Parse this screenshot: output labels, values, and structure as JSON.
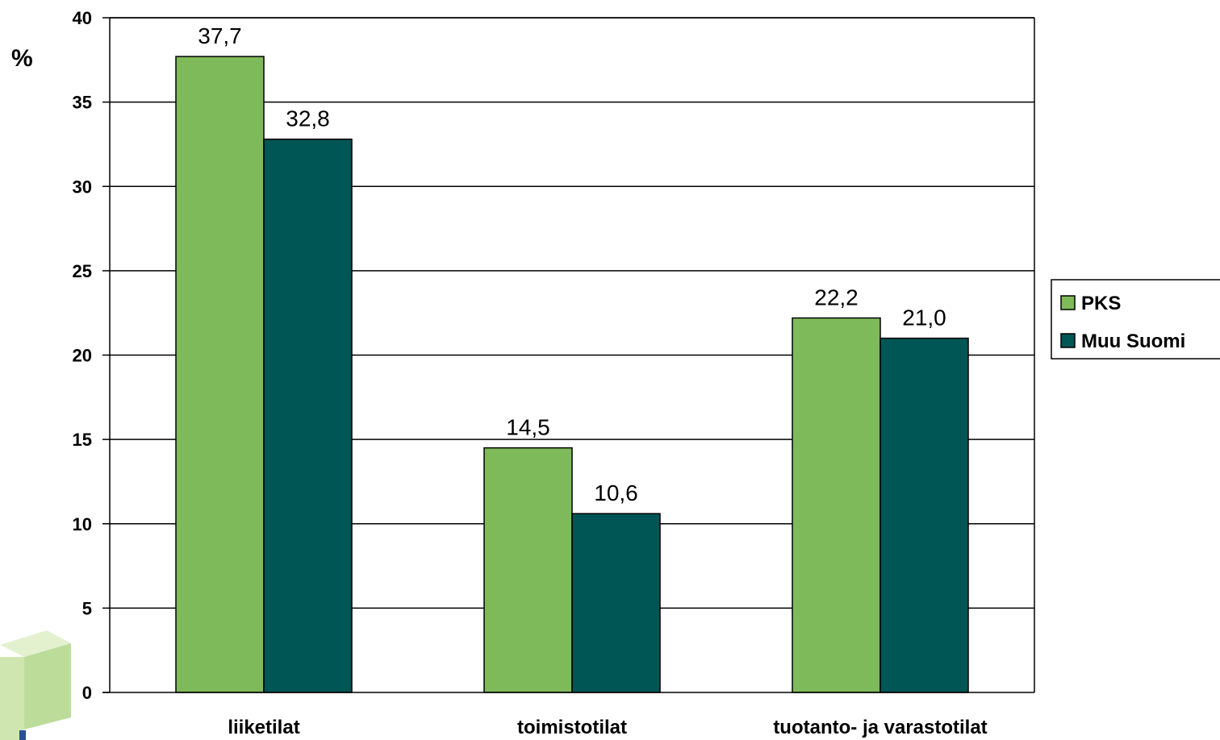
{
  "chart_data": {
    "type": "bar",
    "categories": [
      "liiketilat",
      "toimistotilat",
      "tuotanto- ja varastotilat"
    ],
    "series": [
      {
        "name": "PKS",
        "values": [
          37.7,
          14.5,
          22.2
        ],
        "labels": [
          "37,7",
          "14,5",
          "22,2"
        ],
        "color": "#7fba5a"
      },
      {
        "name": "Muu Suomi",
        "values": [
          32.8,
          10.6,
          21.0
        ],
        "labels": [
          "32,8",
          "10,6",
          "21,0"
        ],
        "color": "#005555"
      }
    ],
    "ylabel": "%",
    "ylim": [
      0,
      40
    ],
    "yticks": [
      0,
      5,
      10,
      15,
      20,
      25,
      30,
      35,
      40
    ],
    "grid": true,
    "legend": "right"
  },
  "colors": {
    "background": "#ffffff",
    "axis": "#000000",
    "logo_light": "#d7ebbd",
    "logo_mid": "#bcdc9a",
    "logo_dark": "#2a4f8f"
  }
}
